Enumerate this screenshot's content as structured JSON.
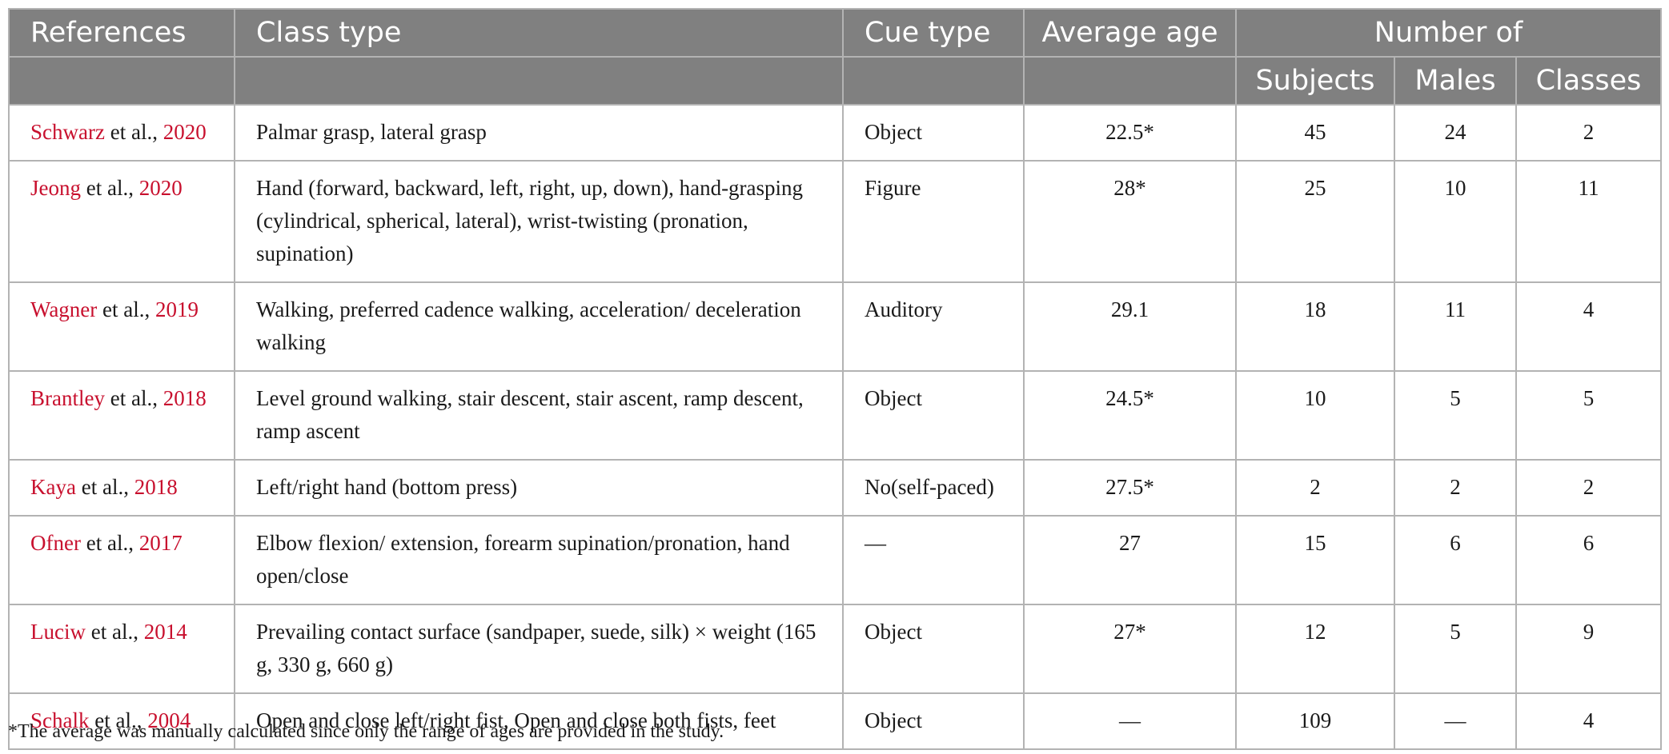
{
  "header": {
    "row1": [
      "References",
      "Class type",
      "Cue type",
      "Average age",
      "Number of"
    ],
    "row2": [
      "Subjects",
      "Males",
      "Classes"
    ]
  },
  "rows": [
    {
      "ref_author": "Schwarz",
      "ref_etal": " et al.,",
      "ref_year": " 2020",
      "class_type": "Palmar grasp, lateral grasp",
      "cue": "Object",
      "age": "22.5*",
      "subjects": "45",
      "males": "24",
      "classes": "2"
    },
    {
      "ref_author": "Jeong",
      "ref_etal": " et al.,",
      "ref_year": " 2020",
      "class_type": "Hand (forward, backward, left, right, up, down), hand-grasping (cylindrical, spherical, lateral), wrist-twisting (pronation, supination)",
      "cue": "Figure",
      "age": "28*",
      "subjects": "25",
      "males": "10",
      "classes": "11"
    },
    {
      "ref_author": "Wagner",
      "ref_etal": " et al.,",
      "ref_year": " 2019",
      "class_type": "Walking, preferred cadence walking, acceleration/ deceleration walking",
      "cue": "Auditory",
      "age": "29.1",
      "subjects": "18",
      "males": "11",
      "classes": "4"
    },
    {
      "ref_author": "Brantley",
      "ref_etal": " et al.,",
      "ref_year": " 2018",
      "class_type": "Level ground walking, stair descent, stair ascent, ramp descent, ramp ascent",
      "cue": "Object",
      "age": "24.5*",
      "subjects": "10",
      "males": "5",
      "classes": "5"
    },
    {
      "ref_author": "Kaya",
      "ref_etal": " et al.,",
      "ref_year": " 2018",
      "class_type": "Left/right hand (bottom press)",
      "cue": "No(self-paced)",
      "age": "27.5*",
      "subjects": "2",
      "males": "2",
      "classes": "2"
    },
    {
      "ref_author": "Ofner",
      "ref_etal": " et al.,",
      "ref_year": " 2017",
      "class_type": "Elbow flexion/ extension, forearm supination/pronation, hand open/close",
      "cue": "—",
      "age": "27",
      "subjects": "15",
      "males": "6",
      "classes": "6"
    },
    {
      "ref_author": "Luciw",
      "ref_etal": " et al.,",
      "ref_year": " 2014",
      "class_type": "Prevailing contact surface (sandpaper, suede, silk) × weight (165 g, 330 g, 660 g)",
      "cue": "Object",
      "age": "27*",
      "subjects": "12",
      "males": "5",
      "classes": "9"
    },
    {
      "ref_author": "Schalk",
      "ref_etal": " et al.,",
      "ref_year": " 2004",
      "class_type": "Open and close left/right fist, Open and close both fists, feet",
      "cue": "Object",
      "age": "—",
      "subjects": "109",
      "males": "—",
      "classes": "4"
    }
  ],
  "footnote": "*The average was manually calculated since only the range of ages are provided in the study.",
  "colors": {
    "header_bg": "#808080",
    "header_text": "#ffffff",
    "grid": "#b3b3b3",
    "link": "#c8102e"
  }
}
